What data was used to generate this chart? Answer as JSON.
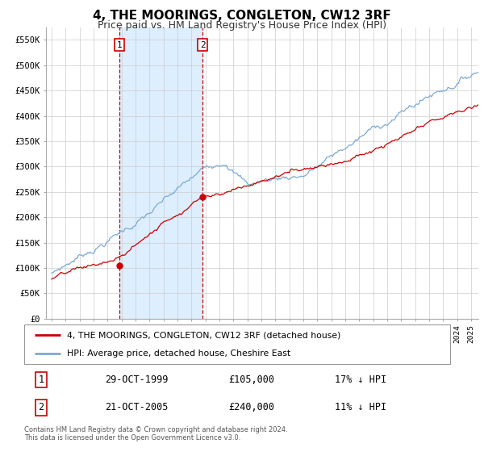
{
  "title": "4, THE MOORINGS, CONGLETON, CW12 3RF",
  "subtitle": "Price paid vs. HM Land Registry's House Price Index (HPI)",
  "title_fontsize": 11,
  "subtitle_fontsize": 9,
  "ylim": [
    0,
    575000
  ],
  "yticks": [
    0,
    50000,
    100000,
    150000,
    200000,
    250000,
    300000,
    350000,
    400000,
    450000,
    500000,
    550000
  ],
  "ytick_labels": [
    "£0",
    "£50K",
    "£100K",
    "£150K",
    "£200K",
    "£250K",
    "£300K",
    "£350K",
    "£400K",
    "£450K",
    "£500K",
    "£550K"
  ],
  "sale1_date": 1999.83,
  "sale1_price": 105000,
  "sale1_label": "29-OCT-1999",
  "sale1_price_label": "£105,000",
  "sale1_hpi": "17% ↓ HPI",
  "sale2_date": 2005.8,
  "sale2_price": 240000,
  "sale2_label": "21-OCT-2005",
  "sale2_price_label": "£240,000",
  "sale2_hpi": "11% ↓ HPI",
  "red_color": "#cc0000",
  "blue_color": "#7aaad4",
  "shaded_color": "#ddeeff",
  "grid_color": "#cccccc",
  "background_color": "#ffffff",
  "legend1_text": "4, THE MOORINGS, CONGLETON, CW12 3RF (detached house)",
  "legend2_text": "HPI: Average price, detached house, Cheshire East",
  "footer1": "Contains HM Land Registry data © Crown copyright and database right 2024.",
  "footer2": "This data is licensed under the Open Government Licence v3.0."
}
